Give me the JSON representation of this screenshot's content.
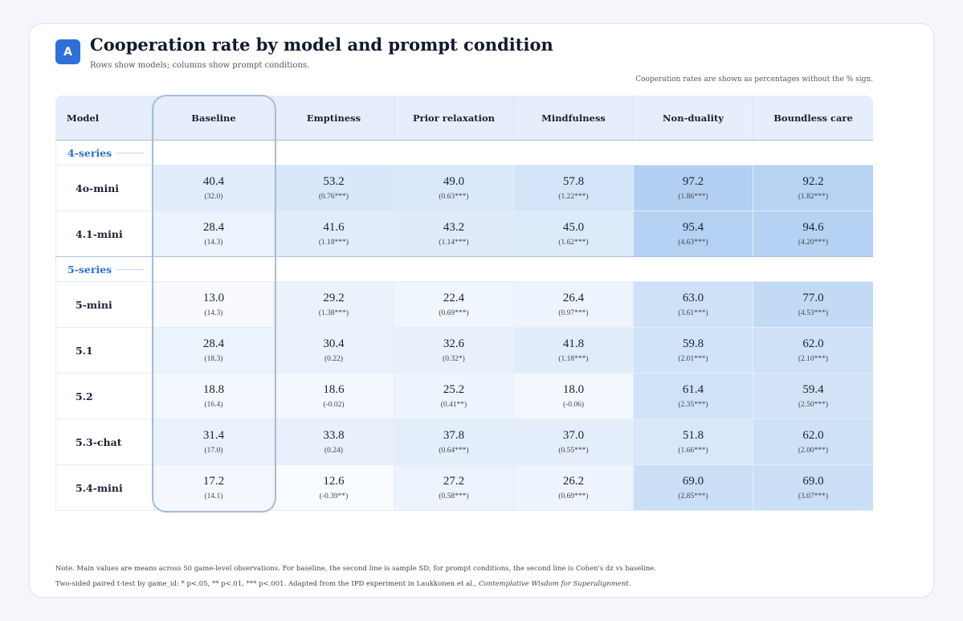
{
  "header": {
    "badge": "A",
    "title": "Cooperation rate by model and prompt condition",
    "subtitle": "Rows show models; columns show prompt conditions.",
    "note": "Cooperation rates are shown as percentages without the % sign."
  },
  "table": {
    "columns": [
      "Model",
      "Baseline",
      "Emptiness",
      "Prior relaxation",
      "Mindfulness",
      "Non-duality",
      "Boundless care"
    ],
    "groups": [
      {
        "label": "4-series",
        "rows": [
          {
            "model": "4o-mini",
            "cells": [
              {
                "value": "40.4",
                "detail": "(32.0)"
              },
              {
                "value": "53.2",
                "detail": "(0.76***)"
              },
              {
                "value": "49.0",
                "detail": "(0.63***)"
              },
              {
                "value": "57.8",
                "detail": "(1.22***)"
              },
              {
                "value": "97.2",
                "detail": "(1.86***)"
              },
              {
                "value": "92.2",
                "detail": "(1.82***)"
              }
            ]
          },
          {
            "model": "4.1-mini",
            "cells": [
              {
                "value": "28.4",
                "detail": "(14.3)"
              },
              {
                "value": "41.6",
                "detail": "(1.18***)"
              },
              {
                "value": "43.2",
                "detail": "(1.14***)"
              },
              {
                "value": "45.0",
                "detail": "(1.62***)"
              },
              {
                "value": "95.4",
                "detail": "(4.63***)"
              },
              {
                "value": "94.6",
                "detail": "(4.20***)"
              }
            ]
          }
        ]
      },
      {
        "label": "5-series",
        "rows": [
          {
            "model": "5-mini",
            "cells": [
              {
                "value": "13.0",
                "detail": "(14.3)"
              },
              {
                "value": "29.2",
                "detail": "(1.38***)"
              },
              {
                "value": "22.4",
                "detail": "(0.69***)"
              },
              {
                "value": "26.4",
                "detail": "(0.97***)"
              },
              {
                "value": "63.0",
                "detail": "(3.61***)"
              },
              {
                "value": "77.0",
                "detail": "(4.53***)"
              }
            ]
          },
          {
            "model": "5.1",
            "cells": [
              {
                "value": "28.4",
                "detail": "(18.3)"
              },
              {
                "value": "30.4",
                "detail": "(0.22)"
              },
              {
                "value": "32.6",
                "detail": "(0.32*)"
              },
              {
                "value": "41.8",
                "detail": "(1.18***)"
              },
              {
                "value": "59.8",
                "detail": "(2.01***)"
              },
              {
                "value": "62.0",
                "detail": "(2.10***)"
              }
            ]
          },
          {
            "model": "5.2",
            "cells": [
              {
                "value": "18.8",
                "detail": "(16.4)"
              },
              {
                "value": "18.6",
                "detail": "(-0.02)"
              },
              {
                "value": "25.2",
                "detail": "(0.41**)"
              },
              {
                "value": "18.0",
                "detail": "(-0.06)"
              },
              {
                "value": "61.4",
                "detail": "(2.35***)"
              },
              {
                "value": "59.4",
                "detail": "(2.50***)"
              }
            ]
          },
          {
            "model": "5.3-chat",
            "cells": [
              {
                "value": "31.4",
                "detail": "(17.0)"
              },
              {
                "value": "33.8",
                "detail": "(0.24)"
              },
              {
                "value": "37.8",
                "detail": "(0.64***)"
              },
              {
                "value": "37.0",
                "detail": "(0.55***)"
              },
              {
                "value": "51.8",
                "detail": "(1.66***)"
              },
              {
                "value": "62.0",
                "detail": "(2.00***)"
              }
            ]
          },
          {
            "model": "5.4-mini",
            "cells": [
              {
                "value": "17.2",
                "detail": "(14.1)"
              },
              {
                "value": "12.6",
                "detail": "(-0.39**)"
              },
              {
                "value": "27.2",
                "detail": "(0.58***)"
              },
              {
                "value": "26.2",
                "detail": "(0.69***)"
              },
              {
                "value": "69.0",
                "detail": "(2.85***)"
              },
              {
                "value": "69.0",
                "detail": "(3.07***)"
              }
            ]
          }
        ]
      }
    ]
  },
  "footer": {
    "line1": "Note. Main values are means across 50 game-level observations. For baseline, the second line is sample SD; for prompt conditions, the second line is Cohen's dz vs baseline.",
    "line2": "Two-sided paired t-test by game_id: * p<.05, ** p<.01, *** p<.001. Adapted from the IPD experiment in Laukkonen et al., ",
    "line2_italic": "Contemplative Wisdom for Superalignment."
  }
}
